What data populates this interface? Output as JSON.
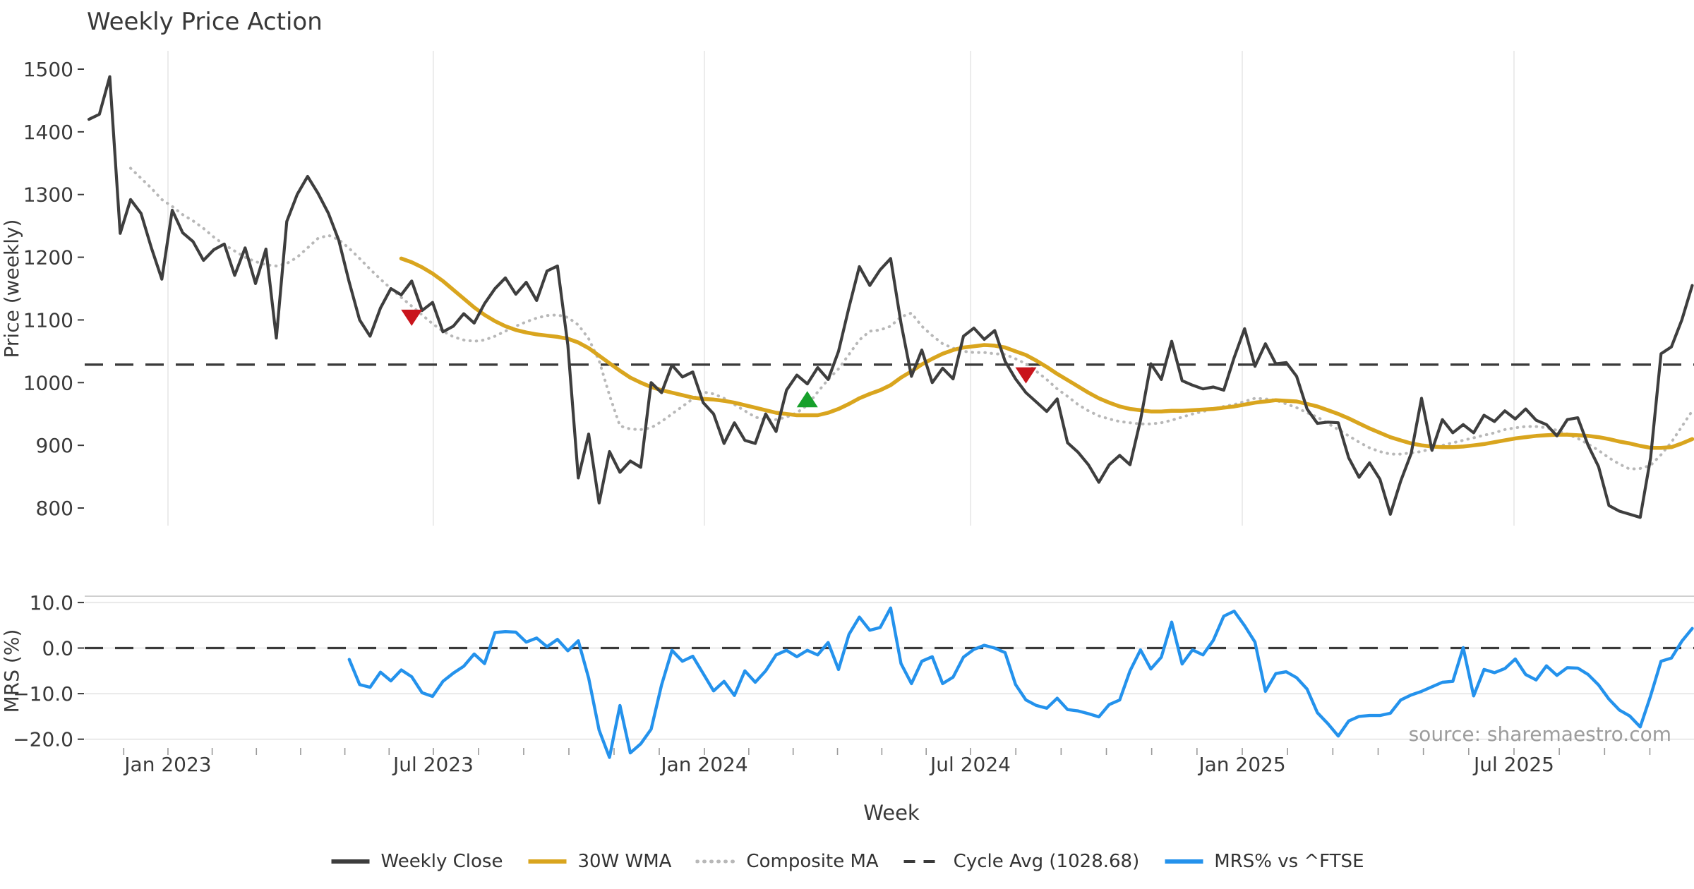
{
  "title": "Weekly Price Action",
  "source_note": "source: sharemaestro.com",
  "axes": {
    "x": {
      "label": "Week",
      "ticks": [
        {
          "label": "Jan 2023",
          "week": 7.59
        },
        {
          "label": "Jul 2023",
          "week": 33.08
        },
        {
          "label": "Jan 2024",
          "week": 59.12
        },
        {
          "label": "Jul 2024",
          "week": 84.68
        },
        {
          "label": "Jan 2025",
          "week": 110.78
        },
        {
          "label": "Jul 2025",
          "week": 136.88
        }
      ]
    },
    "price": {
      "label": "Price (weekly)",
      "ticks": [
        1500,
        1400,
        1300,
        1200,
        1100,
        1000,
        900,
        800
      ]
    },
    "mrs": {
      "label": "MRS (%)",
      "ticks": [
        {
          "label": "10.0",
          "value": 10
        },
        {
          "label": "0.0",
          "value": 0
        },
        {
          "label": "−10.0",
          "value": -10
        },
        {
          "label": "−20.0",
          "value": -20
        }
      ]
    }
  },
  "legend": {
    "items": [
      {
        "label": "Weekly Close",
        "style": "solid",
        "color": "#3d3d3d"
      },
      {
        "label": "30W WMA",
        "style": "solid",
        "color": "#d9a51e"
      },
      {
        "label": "Composite MA",
        "style": "dotted",
        "color": "#b8b8b8"
      },
      {
        "label": "Cycle Avg (1028.68)",
        "style": "dashed",
        "color": "#3a3a3a"
      },
      {
        "label": "MRS% vs ^FTSE",
        "style": "solid",
        "color": "#2492ec"
      }
    ]
  },
  "chart_data": [
    {
      "type": "line",
      "panel": "price",
      "title": "Weekly Price Action",
      "xlabel": "Week",
      "ylabel": "Price (weekly)",
      "ylim": [
        770,
        1515
      ],
      "grid": "vertical",
      "cycle_avg": 1028.68,
      "series": [
        {
          "name": "Weekly Close",
          "color": "#3e3e3e",
          "style": "solid",
          "start_week": 0,
          "values": [
            1420,
            1428,
            1488,
            1238,
            1292,
            1270,
            1215,
            1165,
            1275,
            1239,
            1225,
            1195,
            1212,
            1221,
            1171,
            1215,
            1158,
            1213,
            1071,
            1257,
            1300,
            1329,
            1302,
            1270,
            1227,
            1160,
            1100,
            1074,
            1119,
            1150,
            1140,
            1162,
            1115,
            1128,
            1081,
            1090,
            1110,
            1095,
            1126,
            1150,
            1167,
            1141,
            1160,
            1131,
            1178,
            1186,
            1060,
            848,
            918,
            808,
            890,
            857,
            875,
            865,
            1000,
            984,
            1028,
            1009,
            1017,
            968,
            950,
            903,
            936,
            908,
            903,
            950,
            922,
            988,
            1012,
            998,
            1024,
            1005,
            1050,
            1120,
            1185,
            1155,
            1180,
            1198,
            1095,
            1010,
            1052,
            1000,
            1023,
            1006,
            1074,
            1087,
            1069,
            1083,
            1034,
            1006,
            984,
            969,
            954,
            974,
            904,
            889,
            869,
            841,
            869,
            884,
            869,
            940,
            1030,
            1005,
            1066,
            1003,
            996,
            990,
            993,
            988,
            1040,
            1086,
            1026,
            1062,
            1030,
            1032,
            1010,
            958,
            935,
            937,
            936,
            880,
            849,
            872,
            846,
            790,
            843,
            887,
            975,
            892,
            941,
            920,
            933,
            920,
            948,
            938,
            955,
            942,
            958,
            940,
            933,
            915,
            941,
            944,
            900,
            866,
            804,
            795,
            790,
            785,
            880,
            1046,
            1057,
            1100,
            1155
          ]
        },
        {
          "name": "30W WMA",
          "color": "#d9a51e",
          "style": "solid",
          "start_week": 30,
          "values": [
            1198,
            1192,
            1184,
            1174,
            1162,
            1148,
            1134,
            1120,
            1108,
            1098,
            1090,
            1084,
            1080,
            1077,
            1075,
            1073,
            1070,
            1064,
            1055,
            1043,
            1031,
            1019,
            1008,
            1000,
            993,
            988,
            984,
            980,
            976,
            974,
            973,
            971,
            968,
            964,
            960,
            956,
            952,
            950,
            948,
            948,
            948,
            952,
            958,
            966,
            975,
            982,
            988,
            996,
            1008,
            1018,
            1029,
            1038,
            1046,
            1052,
            1056,
            1058,
            1060,
            1059,
            1056,
            1050,
            1044,
            1035,
            1025,
            1014,
            1004,
            994,
            984,
            975,
            968,
            962,
            958,
            956,
            954,
            954,
            955,
            955,
            956,
            957,
            958,
            960,
            962,
            965,
            968,
            970,
            972,
            971,
            970,
            966,
            962,
            956,
            950,
            943,
            935,
            927,
            920,
            913,
            908,
            903,
            900,
            898,
            897,
            897,
            898,
            900,
            902,
            905,
            908,
            911,
            913,
            915,
            916,
            917,
            917,
            916,
            915,
            913,
            910,
            906,
            903,
            899,
            896,
            896,
            897,
            903,
            910
          ]
        },
        {
          "name": "Composite MA",
          "color": "#b8b8b8",
          "style": "dotted",
          "start_week": 4,
          "values": [
            1342,
            1326,
            1310,
            1292,
            1281,
            1268,
            1258,
            1246,
            1232,
            1220,
            1210,
            1200,
            1193,
            1188,
            1186,
            1190,
            1200,
            1215,
            1230,
            1235,
            1228,
            1214,
            1198,
            1181,
            1165,
            1150,
            1136,
            1122,
            1108,
            1094,
            1082,
            1073,
            1068,
            1066,
            1068,
            1074,
            1082,
            1090,
            1097,
            1103,
            1107,
            1108,
            1104,
            1092,
            1070,
            1035,
            980,
            931,
            926,
            925,
            928,
            938,
            950,
            962,
            974,
            985,
            982,
            975,
            965,
            955,
            945,
            941,
            941,
            945,
            952,
            964,
            985,
            1005,
            1022,
            1045,
            1068,
            1082,
            1084,
            1090,
            1105,
            1111,
            1090,
            1075,
            1062,
            1055,
            1050,
            1048,
            1048,
            1046,
            1045,
            1038,
            1030,
            1018,
            1005,
            990,
            978,
            965,
            955,
            947,
            942,
            938,
            936,
            934,
            934,
            936,
            940,
            945,
            950,
            954,
            958,
            962,
            965,
            970,
            975,
            974,
            972,
            966,
            960,
            952,
            945,
            935,
            925,
            915,
            905,
            896,
            890,
            886,
            886,
            888,
            890,
            895,
            900,
            904,
            908,
            912,
            916,
            920,
            925,
            928,
            930,
            930,
            928,
            924,
            918,
            911,
            902,
            892,
            880,
            870,
            862,
            863,
            868,
            885,
            905,
            930,
            955
          ]
        }
      ],
      "markers": [
        {
          "type": "sell-signal",
          "shape": "triangle-down",
          "color": "#c9141c",
          "week": 31,
          "price": 1104
        },
        {
          "type": "buy-signal",
          "shape": "triangle-up",
          "color": "#17a02b",
          "week": 69,
          "price": 973
        },
        {
          "type": "sell-signal",
          "shape": "triangle-down",
          "color": "#c9141c",
          "week": 90,
          "price": 1012
        }
      ]
    },
    {
      "type": "line",
      "panel": "mrs",
      "ylabel": "MRS (%)",
      "ylim": [
        -26,
        13
      ],
      "grid": "horizontal",
      "zero_line_dashed": true,
      "series": [
        {
          "name": "MRS% vs ^FTSE",
          "color": "#2492ec",
          "style": "solid",
          "start_week": 25,
          "values": [
            -2.5,
            -8.0,
            -8.6,
            -5.3,
            -7.2,
            -4.8,
            -6.3,
            -9.8,
            -10.6,
            -7.3,
            -5.5,
            -4.0,
            -1.3,
            -3.4,
            3.4,
            3.6,
            3.5,
            1.3,
            2.2,
            0.3,
            1.9,
            -0.6,
            1.6,
            -6.6,
            -18.0,
            -24.0,
            -12.6,
            -23.0,
            -21.0,
            -17.8,
            -8.1,
            -0.5,
            -2.9,
            -1.8,
            -5.6,
            -9.4,
            -7.3,
            -10.4,
            -5.0,
            -7.5,
            -5.0,
            -1.5,
            -0.5,
            -1.9,
            -0.5,
            -1.5,
            1.2,
            -4.7,
            3.0,
            6.8,
            3.9,
            4.5,
            8.8,
            -3.4,
            -7.8,
            -2.9,
            -1.9,
            -7.8,
            -6.4,
            -2.0,
            -0.3,
            0.6,
            0.0,
            -1.0,
            -8.0,
            -11.4,
            -12.6,
            -13.2,
            -11.0,
            -13.5,
            -13.8,
            -14.4,
            -15.1,
            -12.4,
            -11.4,
            -5.0,
            -0.4,
            -4.6,
            -2.0,
            5.7,
            -3.5,
            -0.4,
            -1.5,
            1.7,
            7.0,
            8.1,
            4.9,
            1.3,
            -9.5,
            -5.6,
            -5.2,
            -6.5,
            -9.0,
            -14.2,
            -16.6,
            -19.3,
            -16.0,
            -15.0,
            -14.8,
            -14.8,
            -14.3,
            -11.4,
            -10.3,
            -9.5,
            -8.5,
            -7.5,
            -7.3,
            0.1,
            -10.5,
            -4.7,
            -5.4,
            -4.5,
            -2.4,
            -5.8,
            -7.0,
            -3.9,
            -6.0,
            -4.3,
            -4.4,
            -5.8,
            -8.1,
            -11.2,
            -13.6,
            -14.9,
            -17.3,
            -10.5,
            -2.9,
            -2.2,
            1.5,
            4.3
          ]
        }
      ]
    }
  ]
}
